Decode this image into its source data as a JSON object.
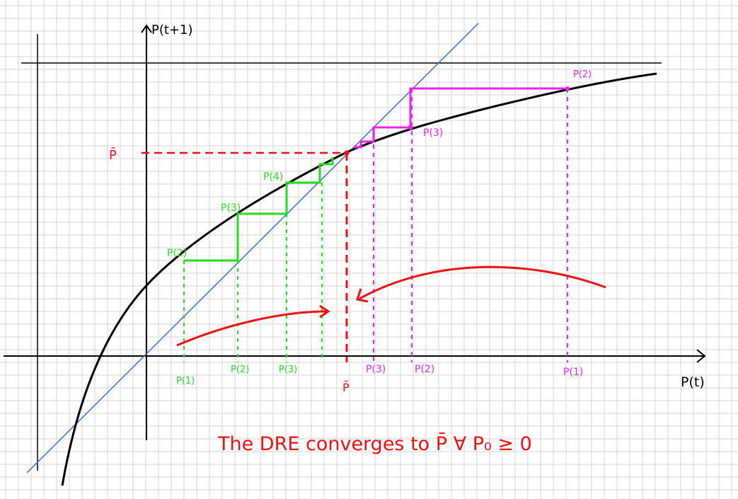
{
  "axes": {
    "y_label": "P(t+1)",
    "x_label": "P(t)"
  },
  "fixed_point": {
    "y_label": "P̄",
    "x_label": "P̄"
  },
  "green_sequence": {
    "curve_labels": [
      "P(2)",
      "P(3)",
      "P(4)"
    ],
    "axis_labels": [
      "P(1)",
      "P(2)",
      "P(3)"
    ]
  },
  "magenta_sequence": {
    "curve_labels": [
      "P(2)",
      "P(3)"
    ],
    "axis_labels": [
      "P(3)",
      "P(2)",
      "P(1)"
    ]
  },
  "caption": {
    "text": "The DRE converges to P̄   ∀ P₀ ≥ 0"
  },
  "colors": {
    "grid": "#d6d6d6",
    "axis": "#000000",
    "identity_line": "#3a6fd8",
    "curve": "#000000",
    "green": "#22dd22",
    "magenta": "#ee22ee",
    "red": "#ee1111"
  }
}
